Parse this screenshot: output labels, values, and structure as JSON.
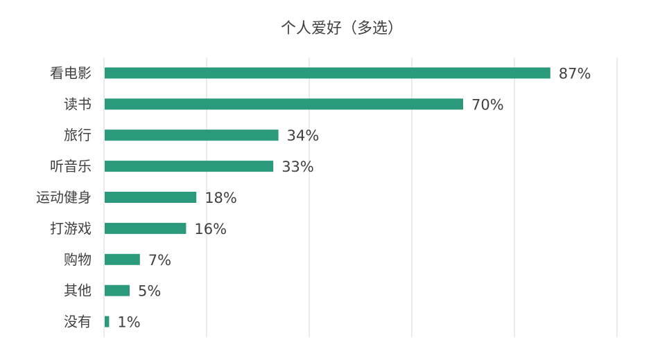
{
  "chart_data": {
    "type": "bar",
    "orientation": "horizontal",
    "title": "个人爱好（多选）",
    "categories": [
      "看电影",
      "读书",
      "旅行",
      "听音乐",
      "运动健身",
      "打游戏",
      "购物",
      "其他",
      "没有"
    ],
    "values": [
      87,
      70,
      34,
      33,
      18,
      16,
      7,
      5,
      1
    ],
    "data_labels": [
      "87%",
      "70%",
      "34%",
      "33%",
      "18%",
      "16%",
      "7%",
      "5%",
      "1%"
    ],
    "unit": "%",
    "xlim": [
      0,
      100
    ],
    "grid": "vertical gridlines every 20%",
    "legend": "none",
    "bar_color": "#2b9a7c"
  }
}
